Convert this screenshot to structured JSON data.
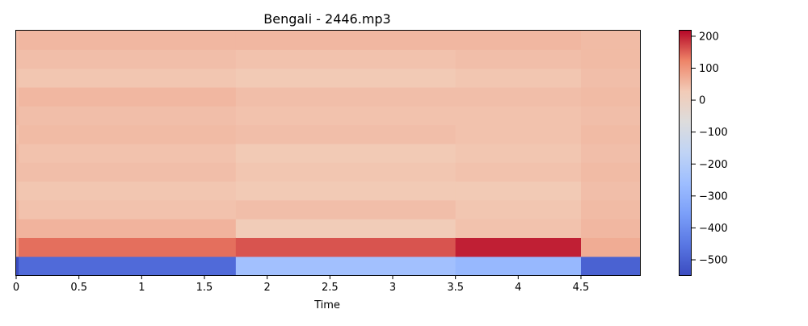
{
  "chart_data": {
    "type": "heatmap",
    "title": "Bengali - 2446.mp3",
    "xlabel": "Time",
    "ylabel": "",
    "xlim": [
      0,
      4.97
    ],
    "x_ticks": [
      0,
      0.5,
      1,
      1.5,
      2,
      2.5,
      3,
      3.5,
      4,
      4.5
    ],
    "x_tick_labels": [
      "0",
      "0.5",
      "1",
      "1.5",
      "2",
      "2.5",
      "3",
      "3.5",
      "4",
      "4.5"
    ],
    "y_ticks": [],
    "n_coefficients": 13,
    "colormap": "coolwarm",
    "colorbar": {
      "vmin": -548,
      "vmax": 220,
      "ticks": [
        200,
        100,
        0,
        -100,
        -200,
        -300,
        -400,
        -500
      ],
      "tick_labels": [
        "200",
        "100",
        "0",
        "−100",
        "−200",
        "−300",
        "−400",
        "−500"
      ]
    },
    "segments": [
      {
        "time_range": [
          0.0,
          0.02
        ],
        "row_values": [
          -548,
          90,
          60,
          55,
          40,
          45,
          50,
          40,
          50,
          45,
          40,
          45,
          50
        ]
      },
      {
        "time_range": [
          0.02,
          1.75
        ],
        "row_values": [
          -480,
          140,
          60,
          40,
          35,
          45,
          40,
          50,
          45,
          55,
          35,
          45,
          55
        ]
      },
      {
        "time_range": [
          1.75,
          3.5
        ],
        "row_values": [
          -250,
          160,
          25,
          45,
          30,
          35,
          30,
          45,
          40,
          45,
          30,
          40,
          55
        ]
      },
      {
        "time_range": [
          3.5,
          4.5
        ],
        "row_values": [
          -280,
          200,
          40,
          35,
          30,
          40,
          35,
          40,
          40,
          45,
          35,
          45,
          55
        ]
      },
      {
        "time_range": [
          4.5,
          4.97
        ],
        "row_values": [
          -500,
          70,
          55,
          50,
          45,
          50,
          45,
          50,
          45,
          50,
          45,
          50,
          50
        ]
      }
    ]
  }
}
